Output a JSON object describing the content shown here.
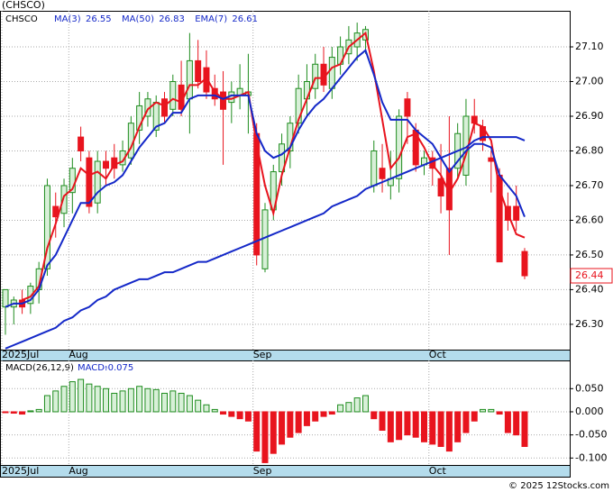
{
  "chart_data": [
    {
      "type": "candlestick",
      "title": "(CHSCO)",
      "symbol": "CHSCO",
      "categories": [
        "2025Jul",
        null,
        null,
        null,
        null,
        null,
        null,
        null,
        "Aug",
        null,
        null,
        null,
        null,
        null,
        null,
        null,
        null,
        null,
        null,
        null,
        null,
        null,
        null,
        null,
        null,
        null,
        null,
        null,
        null,
        null,
        "Sep",
        null,
        null,
        null,
        null,
        null,
        null,
        null,
        null,
        null,
        null,
        null,
        null,
        null,
        null,
        null,
        null,
        null,
        null,
        null,
        null,
        "Oct",
        null,
        null,
        null,
        null,
        null,
        null,
        null,
        null,
        null,
        null,
        null
      ],
      "open": [
        26.35,
        26.35,
        26.37,
        26.36,
        26.4,
        26.46,
        26.64,
        26.62,
        26.68,
        26.84,
        26.78,
        26.65,
        26.77,
        26.78,
        26.76,
        26.78,
        26.86,
        26.9,
        26.86,
        26.95,
        26.92,
        26.99,
        26.95,
        27.06,
        27.04,
        26.98,
        26.97,
        26.94,
        26.96,
        26.96,
        26.85,
        26.46,
        26.63,
        26.74,
        26.8,
        26.88,
        26.95,
        26.98,
        27.05,
        26.98,
        27.05,
        27.08,
        27.1,
        27.12,
        26.7,
        26.75,
        26.7,
        26.72,
        26.95,
        26.86,
        26.76,
        26.78,
        26.72,
        26.75,
        26.75,
        26.73,
        26.9,
        26.87,
        26.78,
        26.73,
        26.64,
        26.64,
        26.51
      ],
      "high": [
        26.4,
        26.38,
        26.4,
        26.42,
        26.48,
        26.72,
        26.68,
        26.72,
        26.78,
        26.87,
        26.8,
        26.8,
        26.8,
        26.82,
        26.83,
        26.9,
        26.97,
        26.97,
        26.96,
        26.97,
        27.02,
        27.06,
        27.14,
        27.12,
        27.09,
        27.02,
        27.03,
        27.0,
        27.05,
        27.08,
        26.88,
        26.65,
        26.76,
        26.85,
        26.9,
        27.02,
        27.05,
        27.08,
        27.1,
        27.1,
        27.13,
        27.16,
        27.17,
        27.16,
        26.83,
        26.82,
        26.8,
        26.92,
        26.97,
        26.88,
        26.8,
        26.8,
        26.82,
        26.9,
        26.88,
        26.95,
        26.95,
        26.89,
        26.8,
        26.75,
        26.68,
        26.7,
        26.52
      ],
      "low": [
        26.27,
        26.3,
        26.33,
        26.33,
        26.36,
        26.44,
        26.55,
        26.58,
        26.62,
        26.77,
        26.62,
        26.62,
        26.7,
        26.72,
        26.74,
        26.76,
        26.82,
        26.87,
        26.84,
        26.88,
        26.9,
        26.9,
        26.85,
        26.98,
        26.95,
        26.93,
        26.76,
        26.88,
        26.92,
        26.85,
        26.47,
        26.45,
        26.6,
        26.7,
        26.75,
        26.85,
        26.9,
        26.95,
        26.97,
        26.95,
        27.02,
        27.05,
        27.06,
        27.08,
        26.68,
        26.68,
        26.66,
        26.68,
        26.82,
        26.74,
        26.73,
        26.7,
        26.62,
        26.5,
        26.72,
        26.7,
        26.85,
        26.8,
        26.68,
        26.48,
        26.57,
        26.57,
        26.43
      ],
      "close": [
        26.4,
        26.37,
        26.35,
        26.41,
        26.46,
        26.7,
        26.61,
        26.7,
        26.75,
        26.8,
        26.64,
        26.77,
        26.75,
        26.75,
        26.8,
        26.88,
        26.93,
        26.95,
        26.94,
        26.9,
        27.0,
        26.92,
        27.06,
        27.0,
        26.97,
        26.95,
        26.92,
        26.97,
        26.98,
        26.97,
        26.5,
        26.63,
        26.74,
        26.82,
        26.88,
        26.98,
        27.0,
        27.05,
        26.99,
        27.07,
        27.1,
        27.12,
        27.14,
        27.15,
        26.8,
        26.72,
        26.72,
        26.9,
        26.9,
        26.76,
        26.78,
        26.75,
        26.67,
        26.63,
        26.85,
        26.9,
        26.88,
        26.83,
        26.77,
        26.48,
        26.6,
        26.6,
        26.44
      ],
      "series": [
        {
          "name": "MA(3)",
          "last": 26.55,
          "color": "#e8141e",
          "values": [
            null,
            null,
            26.37,
            26.38,
            26.41,
            26.52,
            26.59,
            26.67,
            26.69,
            26.75,
            26.73,
            26.74,
            26.72,
            26.76,
            26.77,
            26.81,
            26.87,
            26.92,
            26.94,
            26.93,
            26.95,
            26.94,
            26.99,
            26.99,
            27.01,
            26.97,
            26.95,
            26.95,
            26.96,
            26.97,
            26.82,
            26.7,
            26.62,
            26.73,
            26.81,
            26.89,
            26.95,
            27.01,
            27.01,
            27.04,
            27.05,
            27.1,
            27.12,
            27.14,
            27.03,
            26.89,
            26.75,
            26.78,
            26.84,
            26.85,
            26.81,
            26.76,
            26.73,
            26.68,
            26.72,
            26.79,
            26.88,
            26.87,
            26.83,
            26.69,
            26.62,
            26.56,
            26.55
          ]
        },
        {
          "name": "MA(50)",
          "last": 26.83,
          "color": "#1428c8",
          "values": [
            26.23,
            26.24,
            26.25,
            26.26,
            26.27,
            26.28,
            26.29,
            26.31,
            26.32,
            26.34,
            26.35,
            26.37,
            26.38,
            26.4,
            26.41,
            26.42,
            26.43,
            26.43,
            26.44,
            26.45,
            26.45,
            26.46,
            26.47,
            26.48,
            26.48,
            26.49,
            26.5,
            26.51,
            26.52,
            26.53,
            26.54,
            26.55,
            26.56,
            26.57,
            26.58,
            26.59,
            26.6,
            26.61,
            26.62,
            26.64,
            26.65,
            26.66,
            26.67,
            26.69,
            26.7,
            26.71,
            26.72,
            26.73,
            26.74,
            26.75,
            26.76,
            26.77,
            26.78,
            26.79,
            26.8,
            26.81,
            26.83,
            26.84,
            26.84,
            26.84,
            26.84,
            26.84,
            26.83
          ]
        },
        {
          "name": "EMA(7)",
          "last": 26.61,
          "color": "#1428c8",
          "values": [
            26.35,
            26.36,
            26.36,
            26.37,
            26.4,
            26.47,
            26.5,
            26.55,
            26.6,
            26.65,
            26.65,
            26.68,
            26.7,
            26.71,
            26.73,
            26.77,
            26.81,
            26.84,
            26.87,
            26.88,
            26.91,
            26.91,
            26.95,
            26.96,
            26.96,
            26.96,
            26.95,
            26.96,
            26.96,
            26.96,
            26.85,
            26.8,
            26.78,
            26.79,
            26.81,
            26.86,
            26.9,
            26.93,
            26.95,
            26.98,
            27.01,
            27.04,
            27.07,
            27.09,
            27.02,
            26.94,
            26.89,
            26.89,
            26.89,
            26.86,
            26.84,
            26.82,
            26.78,
            26.74,
            26.77,
            26.8,
            26.82,
            26.82,
            26.81,
            26.73,
            26.7,
            26.67,
            26.61
          ]
        }
      ],
      "last_price": 26.44,
      "ylim": [
        26.227,
        27.204
      ],
      "yticks": [
        {
          "value": 26.3,
          "label": "26.30"
        },
        {
          "value": 26.4,
          "label": "26.40"
        },
        {
          "value": 26.5,
          "label": "26.50"
        },
        {
          "value": 26.6,
          "label": "26.60"
        },
        {
          "value": 26.7,
          "label": "26.70"
        },
        {
          "value": 26.8,
          "label": "26.80"
        },
        {
          "value": 26.9,
          "label": "26.90"
        },
        {
          "value": 27,
          "label": "27.00"
        },
        {
          "value": 27.1,
          "label": "27.10"
        }
      ],
      "up_color": "#1e8c1e",
      "down_color": "#e8141e",
      "grid": true
    },
    {
      "type": "histogram",
      "title": "MACD(26,12,9)",
      "value_name": "MACD:",
      "last": -0.075,
      "values": [
        -0.002,
        -0.003,
        -0.005,
        0.002,
        0.005,
        0.035,
        0.045,
        0.055,
        0.065,
        0.07,
        0.06,
        0.055,
        0.05,
        0.04,
        0.045,
        0.05,
        0.055,
        0.05,
        0.048,
        0.04,
        0.045,
        0.04,
        0.035,
        0.025,
        0.015,
        0.005,
        -0.005,
        -0.01,
        -0.015,
        -0.02,
        -0.085,
        -0.11,
        -0.09,
        -0.07,
        -0.055,
        -0.045,
        -0.03,
        -0.02,
        -0.01,
        -0.005,
        0.015,
        0.02,
        0.03,
        0.035,
        -0.015,
        -0.04,
        -0.065,
        -0.06,
        -0.05,
        -0.055,
        -0.065,
        -0.07,
        -0.075,
        -0.085,
        -0.065,
        -0.045,
        -0.02,
        0.005,
        0.005,
        -0.005,
        -0.045,
        -0.05,
        -0.075
      ],
      "ylim": [
        -0.115,
        0.111
      ],
      "yticks": [
        {
          "value": 0.05,
          "label": "0.050"
        },
        {
          "value": 0,
          "label": "0.000"
        },
        {
          "value": -0.05,
          "label": "-0.050"
        },
        {
          "value": -0.1,
          "label": "-0.100"
        }
      ],
      "up_color": "#1e8c1e",
      "down_color": "#e8141e",
      "grid": true
    }
  ],
  "footer": "© 2025 12Stocks.com"
}
